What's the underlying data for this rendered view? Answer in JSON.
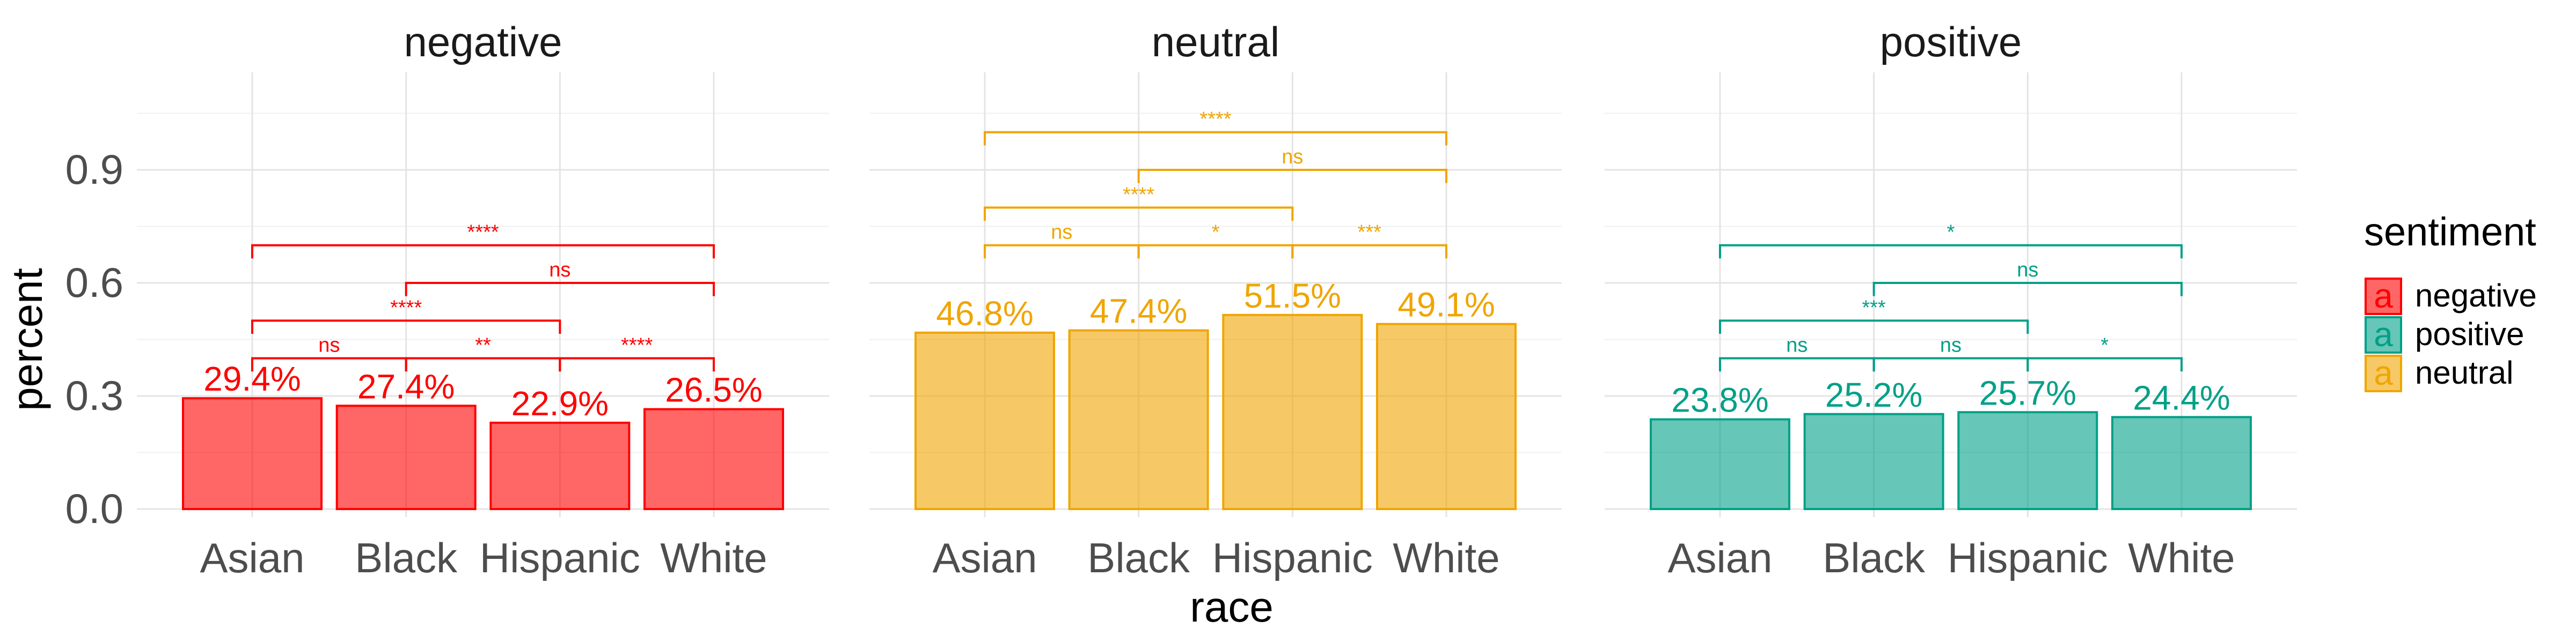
{
  "chart_data": {
    "type": "bar",
    "xlabel": "race",
    "ylabel": "percent",
    "ylim": [
      0,
      1.15
    ],
    "yticks": [
      0.0,
      0.3,
      0.6,
      0.9
    ],
    "ytick_labels": [
      "0.0",
      "0.3",
      "0.6",
      "0.9"
    ],
    "grid": true,
    "categories": [
      "Asian",
      "Black",
      "Hispanic",
      "White"
    ],
    "legend": {
      "title": "sentiment",
      "position": "right",
      "key_glyph": "a",
      "entries": [
        {
          "label": "negative",
          "color": "#FF0000"
        },
        {
          "label": "positive",
          "color": "#00A087"
        },
        {
          "label": "neutral",
          "color": "#F0A500"
        }
      ]
    },
    "panels": [
      {
        "title": "negative",
        "color": "#FF0000",
        "values": [
          0.294,
          0.274,
          0.229,
          0.265
        ],
        "value_labels": [
          "29.4%",
          "27.4%",
          "22.9%",
          "26.5%"
        ],
        "comparisons": [
          {
            "from": 0,
            "to": 1,
            "y": 0.4,
            "label": "ns"
          },
          {
            "from": 1,
            "to": 2,
            "y": 0.4,
            "label": "**"
          },
          {
            "from": 2,
            "to": 3,
            "y": 0.4,
            "label": "****"
          },
          {
            "from": 0,
            "to": 2,
            "y": 0.5,
            "label": "****"
          },
          {
            "from": 1,
            "to": 3,
            "y": 0.6,
            "label": "ns"
          },
          {
            "from": 0,
            "to": 3,
            "y": 0.7,
            "label": "****"
          }
        ]
      },
      {
        "title": "neutral",
        "color": "#F0A500",
        "values": [
          0.468,
          0.474,
          0.515,
          0.491
        ],
        "value_labels": [
          "46.8%",
          "47.4%",
          "51.5%",
          "49.1%"
        ],
        "comparisons": [
          {
            "from": 0,
            "to": 1,
            "y": 0.7,
            "label": "ns"
          },
          {
            "from": 1,
            "to": 2,
            "y": 0.7,
            "label": "*"
          },
          {
            "from": 2,
            "to": 3,
            "y": 0.7,
            "label": "***"
          },
          {
            "from": 0,
            "to": 2,
            "y": 0.8,
            "label": "****"
          },
          {
            "from": 1,
            "to": 3,
            "y": 0.9,
            "label": "ns"
          },
          {
            "from": 0,
            "to": 3,
            "y": 1.0,
            "label": "****"
          }
        ]
      },
      {
        "title": "positive",
        "color": "#00A087",
        "values": [
          0.238,
          0.252,
          0.257,
          0.244
        ],
        "value_labels": [
          "23.8%",
          "25.2%",
          "25.7%",
          "24.4%"
        ],
        "comparisons": [
          {
            "from": 0,
            "to": 1,
            "y": 0.4,
            "label": "ns"
          },
          {
            "from": 1,
            "to": 2,
            "y": 0.4,
            "label": "ns"
          },
          {
            "from": 2,
            "to": 3,
            "y": 0.4,
            "label": "*"
          },
          {
            "from": 0,
            "to": 2,
            "y": 0.5,
            "label": "***"
          },
          {
            "from": 1,
            "to": 3,
            "y": 0.6,
            "label": "ns"
          },
          {
            "from": 0,
            "to": 3,
            "y": 0.7,
            "label": "*"
          }
        ]
      }
    ]
  }
}
